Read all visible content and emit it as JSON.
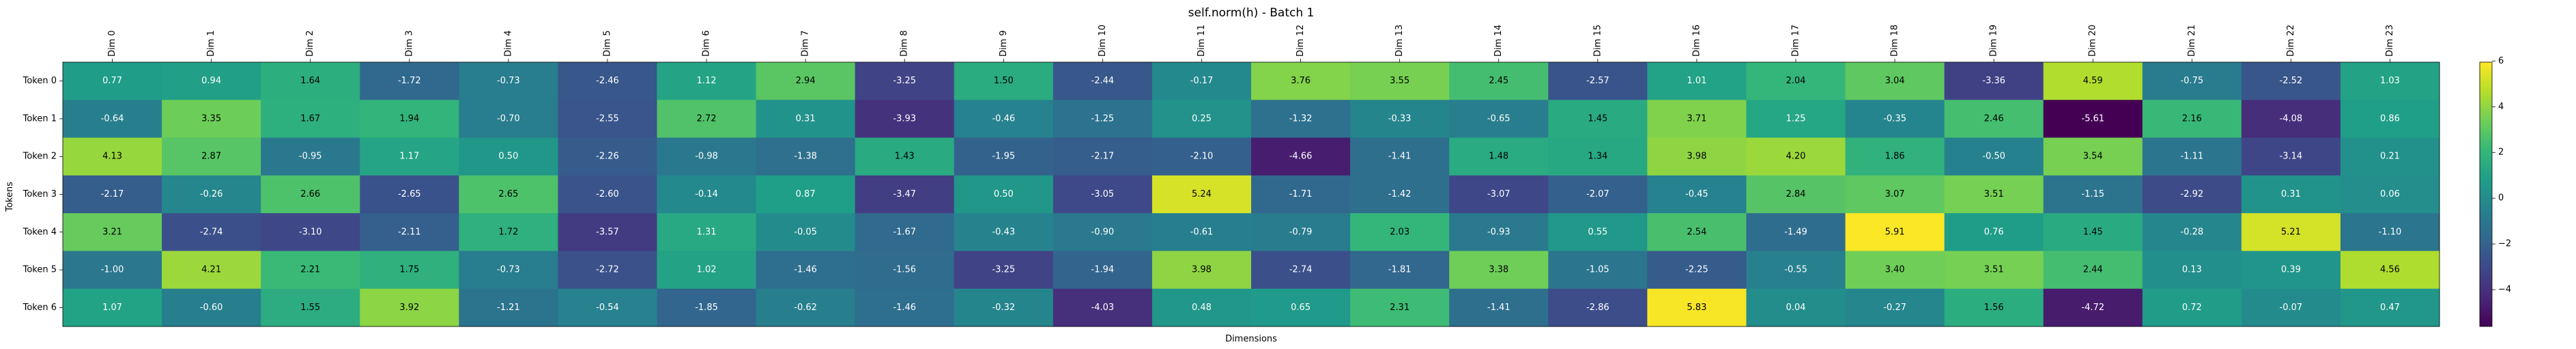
{
  "chart_data": {
    "type": "heatmap",
    "title": "self.norm(h) - Batch 1",
    "xlabel": "Dimensions",
    "ylabel": "Tokens",
    "colormap": "viridis",
    "vmin": -5.61,
    "vmax": 5.95,
    "colorbar_ticks": [
      -4,
      -2,
      0,
      2,
      4,
      6
    ],
    "x_labels": [
      "Dim 0",
      "Dim 1",
      "Dim 2",
      "Dim 3",
      "Dim 4",
      "Dim 5",
      "Dim 6",
      "Dim 7",
      "Dim 8",
      "Dim 9",
      "Dim 10",
      "Dim 11",
      "Dim 12",
      "Dim 13",
      "Dim 14",
      "Dim 15",
      "Dim 16",
      "Dim 17",
      "Dim 18",
      "Dim 19",
      "Dim 20",
      "Dim 21",
      "Dim 22",
      "Dim 23"
    ],
    "y_labels": [
      "Token 0",
      "Token 1",
      "Token 2",
      "Token 3",
      "Token 4",
      "Token 5",
      "Token 6"
    ],
    "values": [
      [
        0.77,
        0.94,
        1.64,
        -1.72,
        -0.73,
        -2.46,
        1.12,
        2.94,
        -3.25,
        1.5,
        -2.44,
        -0.17,
        3.76,
        3.55,
        2.45,
        -2.57,
        1.01,
        2.04,
        3.04,
        -3.36,
        4.59,
        -0.75,
        -2.52,
        1.03
      ],
      [
        -0.64,
        3.35,
        1.67,
        1.94,
        -0.7,
        -2.55,
        2.72,
        0.31,
        -3.93,
        -0.46,
        -1.25,
        0.25,
        -1.32,
        -0.33,
        -0.65,
        1.45,
        3.71,
        1.25,
        -0.35,
        2.46,
        -5.61,
        2.16,
        -4.08,
        0.86
      ],
      [
        4.13,
        2.87,
        -0.95,
        1.17,
        0.5,
        -2.26,
        -0.98,
        -1.38,
        1.43,
        -1.95,
        -2.17,
        -2.1,
        -4.66,
        -1.41,
        1.48,
        1.34,
        3.98,
        4.2,
        1.86,
        -0.5,
        3.54,
        -1.11,
        -3.14,
        0.21
      ],
      [
        -2.17,
        -0.26,
        2.66,
        -2.65,
        2.65,
        -2.6,
        -0.14,
        0.87,
        -3.47,
        0.5,
        -3.05,
        5.24,
        -1.71,
        -1.42,
        -3.07,
        -2.07,
        -0.45,
        2.84,
        3.07,
        3.51,
        -1.15,
        -2.92,
        0.31,
        0.06
      ],
      [
        3.21,
        -2.74,
        -3.1,
        -2.11,
        1.72,
        -3.57,
        1.31,
        -0.05,
        -1.67,
        -0.43,
        -0.9,
        -0.61,
        -0.79,
        2.03,
        -0.93,
        0.55,
        2.54,
        -1.49,
        5.91,
        0.76,
        1.45,
        -0.28,
        5.21,
        -1.1
      ],
      [
        -1.0,
        4.21,
        2.21,
        1.75,
        -0.73,
        -2.72,
        1.02,
        -1.46,
        -1.56,
        -3.25,
        -1.94,
        3.98,
        -2.74,
        -1.81,
        3.38,
        -1.05,
        -2.25,
        -0.55,
        3.4,
        3.51,
        2.44,
        0.13,
        0.39,
        4.56
      ],
      [
        1.07,
        -0.6,
        1.55,
        3.92,
        -1.21,
        -0.54,
        -1.85,
        -0.62,
        -1.46,
        -0.32,
        -4.03,
        0.48,
        0.65,
        2.31,
        -1.41,
        -2.86,
        5.83,
        0.04,
        -0.27,
        1.56,
        -4.72,
        0.72,
        -0.07,
        0.47
      ]
    ]
  }
}
